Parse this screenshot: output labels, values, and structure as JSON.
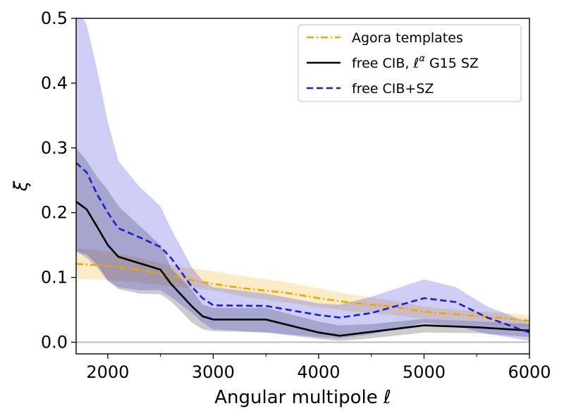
{
  "chart_data": {
    "type": "line",
    "xlabel": "Angular multipole ℓ",
    "ylabel": "ξ",
    "xlim": [
      1700,
      6000
    ],
    "ylim": [
      -0.018,
      0.5
    ],
    "x_ticks": [
      2000,
      3000,
      4000,
      5000,
      6000
    ],
    "x_tick_labels": [
      "2000",
      "3000",
      "4000",
      "5000",
      "6000"
    ],
    "x_minor_ticks": [
      2500,
      3500,
      4500,
      5500
    ],
    "y_ticks": [
      0.0,
      0.1,
      0.2,
      0.3,
      0.4,
      0.5
    ],
    "y_tick_labels": [
      "0.0",
      "0.1",
      "0.2",
      "0.3",
      "0.4",
      "0.5"
    ],
    "reference_line": {
      "y": 0.0,
      "color": "#bbbbbb"
    },
    "grid": false,
    "legend_placement": "top-right",
    "series": [
      {
        "name": "Agora templates",
        "color": "#f0a500",
        "style": "dashdot",
        "x": [
          1700,
          2000,
          2300,
          2600,
          3000,
          3300,
          3700,
          4000,
          4300,
          4700,
          5000,
          5300,
          5700,
          6000
        ],
        "values": [
          0.121,
          0.118,
          0.112,
          0.102,
          0.09,
          0.083,
          0.076,
          0.068,
          0.061,
          0.055,
          0.047,
          0.043,
          0.038,
          0.033
        ],
        "band_upper": [
          0.145,
          0.14,
          0.13,
          0.118,
          0.11,
          0.101,
          0.093,
          0.083,
          0.074,
          0.064,
          0.055,
          0.05,
          0.046,
          0.042
        ],
        "band_lower": [
          0.098,
          0.096,
          0.092,
          0.086,
          0.08,
          0.07,
          0.061,
          0.054,
          0.048,
          0.042,
          0.036,
          0.033,
          0.028,
          0.023
        ]
      },
      {
        "name": "free CIB, ℓ^α G15 SZ",
        "color": "#000000",
        "style": "solid",
        "x": [
          1700,
          1800,
          1900,
          2000,
          2100,
          2300,
          2500,
          2600,
          2800,
          2900,
          3000,
          3500,
          4000,
          4200,
          4500,
          5000,
          5500,
          6000
        ],
        "values": [
          0.217,
          0.205,
          0.178,
          0.15,
          0.132,
          0.122,
          0.112,
          0.09,
          0.055,
          0.04,
          0.035,
          0.035,
          0.015,
          0.01,
          0.016,
          0.026,
          0.023,
          0.018
        ],
        "band_upper": [
          0.3,
          0.28,
          0.255,
          0.235,
          0.21,
          0.18,
          0.15,
          0.115,
          0.08,
          0.058,
          0.053,
          0.053,
          0.032,
          0.026,
          0.028,
          0.036,
          0.032,
          0.028
        ],
        "band_lower": [
          0.14,
          0.135,
          0.12,
          0.095,
          0.082,
          0.075,
          0.074,
          0.063,
          0.03,
          0.02,
          0.017,
          0.015,
          0.005,
          0.002,
          0.006,
          0.015,
          0.014,
          0.008
        ]
      },
      {
        "name": "free CIB+SZ",
        "color": "#1c1cd6",
        "style": "dashed",
        "x": [
          1700,
          1800,
          1900,
          2000,
          2100,
          2300,
          2500,
          2600,
          2800,
          2900,
          3000,
          3500,
          4000,
          4200,
          4500,
          5000,
          5300,
          5600,
          6000
        ],
        "values": [
          0.277,
          0.262,
          0.228,
          0.2,
          0.176,
          0.162,
          0.147,
          0.13,
          0.085,
          0.068,
          0.057,
          0.056,
          0.042,
          0.038,
          0.045,
          0.068,
          0.062,
          0.038,
          0.015
        ],
        "band_upper": [
          0.52,
          0.49,
          0.42,
          0.34,
          0.28,
          0.24,
          0.21,
          0.175,
          0.115,
          0.095,
          0.085,
          0.075,
          0.06,
          0.058,
          0.07,
          0.097,
          0.085,
          0.055,
          0.03
        ],
        "band_lower": [
          0.14,
          0.13,
          0.115,
          0.095,
          0.085,
          0.08,
          0.08,
          0.07,
          0.045,
          0.03,
          0.02,
          0.015,
          0.008,
          0.006,
          0.012,
          0.03,
          0.025,
          0.013,
          0.002
        ]
      }
    ]
  }
}
